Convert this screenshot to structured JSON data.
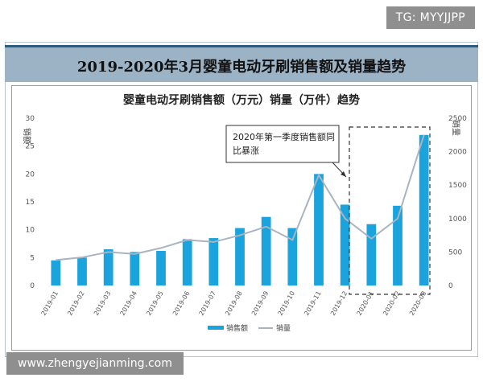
{
  "tag": "TG: MYYJJPP",
  "banner_title": "2019-2020年3月婴童电动牙刷销售额及销量趋势",
  "watermark": "www.zhengyejianming.com",
  "annotation": {
    "line1": "2020年第一季度销售额同",
    "line2": "比暴涨"
  },
  "colors": {
    "bar": "#1aa3dc",
    "line": "#a9b4c2",
    "banner": "#9cb3c6",
    "banner_border": "#2d5b7a"
  },
  "chart_data": {
    "type": "bar",
    "title": "婴童电动牙刷销售额（万元）销量（万件）趋势",
    "categories": [
      "2019-01",
      "2019-02",
      "2019-03",
      "2019-04",
      "2019-05",
      "2019-06",
      "2019-07",
      "2019-08",
      "2019-09",
      "2019-10",
      "2019-11",
      "2019-12",
      "2020-01",
      "2020-02",
      "2020-03"
    ],
    "series": [
      {
        "name": "销售额",
        "type": "bar",
        "axis": "left",
        "values": [
          4.5,
          5.0,
          6.5,
          6.0,
          6.2,
          8.3,
          8.5,
          10.3,
          12.3,
          10.3,
          20.0,
          14.5,
          11.0,
          14.3,
          27.0
        ]
      },
      {
        "name": "销量",
        "type": "line",
        "axis": "right",
        "values": [
          380,
          420,
          500,
          470,
          560,
          680,
          650,
          750,
          880,
          680,
          1650,
          1000,
          700,
          1000,
          2250
        ]
      }
    ],
    "ylabel_left": "销额",
    "ylabel_right": "销量",
    "ylim_left": [
      0,
      30
    ],
    "yticks_left": [
      0,
      5,
      10,
      15,
      20,
      25,
      30
    ],
    "ylim_right": [
      0,
      2500
    ],
    "yticks_right": [
      0,
      500,
      1000,
      1500,
      2000,
      2500
    ],
    "grid": false,
    "legend": "bottom"
  }
}
